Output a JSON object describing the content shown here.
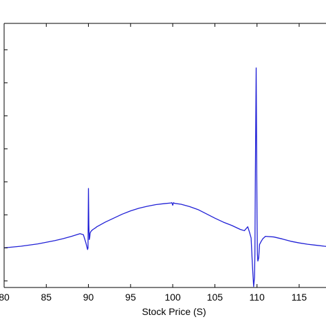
{
  "chart_data": {
    "type": "line",
    "title": "",
    "xlabel": "Stock Price (S)",
    "ylabel": "",
    "xlim": [
      80,
      119
    ],
    "ylim": [
      -1.2,
      6.8
    ],
    "x_ticks": [
      80,
      85,
      90,
      95,
      100,
      105,
      110,
      115
    ],
    "x_tick_labels": [
      "80",
      "85",
      "90",
      "95",
      "100",
      "105",
      "110",
      "115"
    ],
    "y_ticks": [
      -1,
      0,
      1,
      2,
      3,
      4,
      5,
      6
    ],
    "y_tick_labels": [],
    "grid": false,
    "legend": "none",
    "series": [
      {
        "color": "#1f1fd6",
        "x": [
          80,
          82,
          84,
          86,
          87,
          88,
          89,
          89.4,
          89.7,
          89.9,
          89.95,
          90.0,
          90.05,
          90.1,
          90.15,
          90.2,
          90.3,
          90.5,
          90.8,
          91,
          92,
          93,
          94,
          95,
          96,
          97,
          98,
          99,
          99.8,
          99.9,
          100.0,
          100.1,
          100.2,
          101,
          102,
          103,
          104,
          105,
          106,
          107,
          108,
          108.5,
          108.9,
          109.1,
          109.3,
          109.45,
          109.6,
          109.7,
          109.75,
          109.8,
          109.9,
          109.95,
          110.0,
          110.05,
          110.1,
          110.2,
          110.3,
          110.5,
          110.7,
          111,
          112,
          113,
          114,
          115,
          116,
          117,
          118,
          119
        ],
        "y": [
          0.0,
          0.05,
          0.12,
          0.22,
          0.28,
          0.35,
          0.43,
          0.4,
          0.15,
          -0.05,
          0.0,
          1.8,
          0.7,
          0.25,
          0.3,
          0.45,
          0.5,
          0.55,
          0.6,
          0.64,
          0.78,
          0.9,
          1.02,
          1.12,
          1.2,
          1.26,
          1.31,
          1.34,
          1.36,
          1.37,
          1.29,
          1.37,
          1.35,
          1.32,
          1.25,
          1.16,
          1.03,
          0.9,
          0.78,
          0.68,
          0.56,
          0.52,
          0.64,
          0.48,
          0.3,
          -0.5,
          -1.17,
          -0.9,
          -0.2,
          2.0,
          5.45,
          3.2,
          1.0,
          -0.2,
          -0.4,
          -0.3,
          0.1,
          0.2,
          0.28,
          0.35,
          0.33,
          0.27,
          0.2,
          0.15,
          0.11,
          0.08,
          0.05,
          0.03
        ]
      }
    ]
  }
}
